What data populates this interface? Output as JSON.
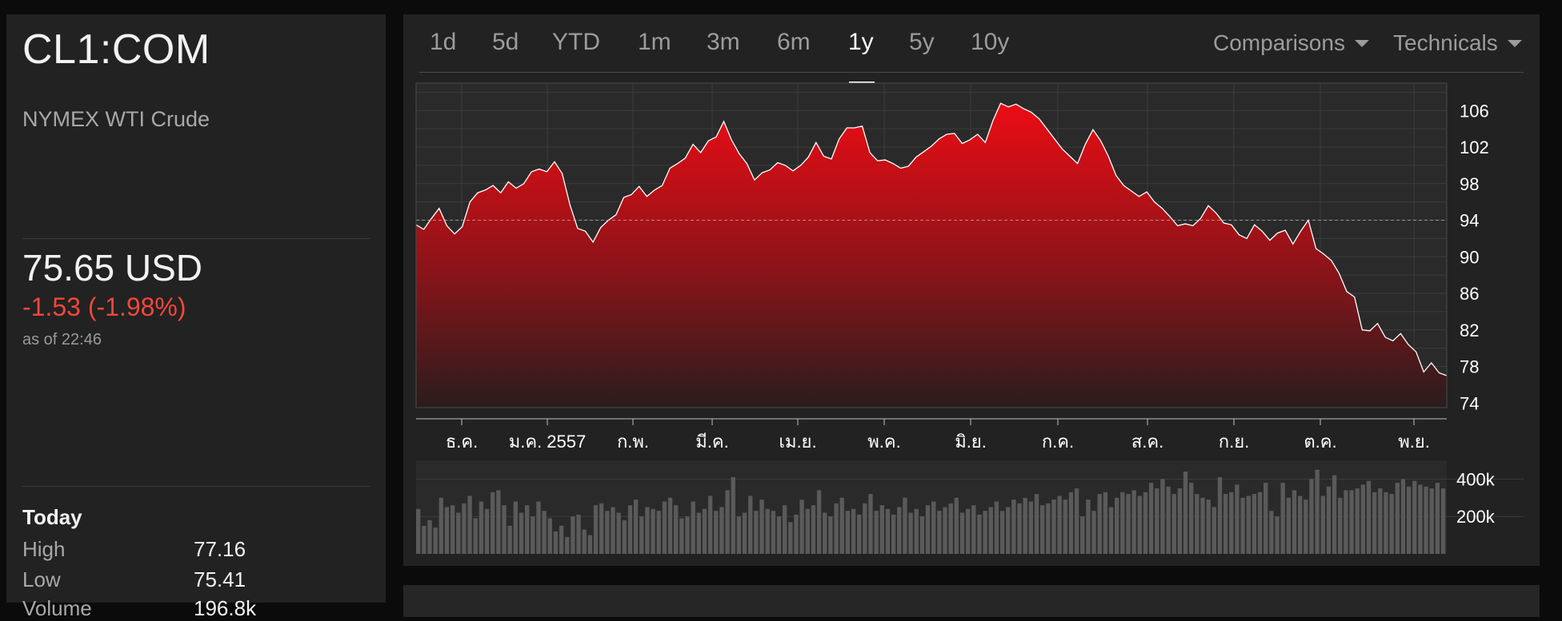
{
  "quote": {
    "ticker": "CL1:COM",
    "name": "NYMEX WTI Crude",
    "price": "75.65 USD",
    "change": "-1.53 (-1.98%)",
    "as_of": "as of 22:46"
  },
  "today": {
    "title": "Today",
    "stats": [
      {
        "label": "High",
        "value": "77.16"
      },
      {
        "label": "Low",
        "value": "75.41"
      },
      {
        "label": "Volume",
        "value": "196.8k"
      }
    ]
  },
  "range_tabs": [
    {
      "label": "1d",
      "active": false
    },
    {
      "label": "5d",
      "active": false
    },
    {
      "label": "YTD",
      "active": false
    },
    {
      "label": "1m",
      "active": false
    },
    {
      "label": "3m",
      "active": false
    },
    {
      "label": "6m",
      "active": false
    },
    {
      "label": "1y",
      "active": true
    },
    {
      "label": "5y",
      "active": false
    },
    {
      "label": "10y",
      "active": false
    }
  ],
  "menus": {
    "comparisons": "Comparisons",
    "technicals": "Technicals"
  },
  "colors": {
    "accent_red": "#e0101a",
    "down": "#f2473a"
  },
  "chart_data": [
    {
      "type": "area",
      "x_tick_labels": [
        "ธ.ค.",
        "ม.ค. 2557",
        "ก.พ.",
        "มี.ค.",
        "เม.ย.",
        "พ.ค.",
        "มิ.ย.",
        "ก.ค.",
        "ส.ค.",
        "ก.ย.",
        "ต.ค.",
        "พ.ย."
      ],
      "y_ticks": [
        106,
        102,
        98,
        94,
        90,
        86,
        82,
        78,
        74
      ],
      "ylim": [
        73.5,
        109
      ],
      "reference_line": 94,
      "grid": true,
      "series": [
        {
          "values": [
            93.5,
            93.0,
            94.2,
            95.3,
            93.4,
            92.5,
            93.3,
            96.0,
            97.0,
            97.3,
            97.8,
            97.0,
            98.2,
            97.5,
            98.0,
            99.3,
            99.6,
            99.3,
            100.4,
            99.1,
            95.7,
            93.1,
            92.8,
            91.6,
            93.2,
            94.0,
            94.6,
            96.5,
            96.8,
            97.7,
            96.6,
            97.3,
            97.8,
            99.7,
            100.2,
            100.8,
            102.3,
            101.4,
            102.7,
            103.1,
            104.8,
            102.8,
            101.3,
            100.2,
            98.4,
            99.2,
            99.5,
            100.3,
            100.0,
            99.4,
            100.0,
            100.9,
            102.5,
            101.0,
            100.7,
            102.9,
            104.1,
            104.1,
            104.3,
            101.4,
            100.5,
            100.6,
            100.2,
            99.7,
            99.9,
            100.9,
            101.5,
            102.1,
            102.9,
            103.4,
            103.5,
            102.4,
            102.8,
            103.4,
            102.5,
            104.9,
            106.8,
            106.4,
            106.7,
            106.2,
            105.8,
            105.1,
            104.0,
            102.9,
            101.8,
            101.0,
            100.2,
            102.3,
            103.9,
            102.7,
            101.0,
            98.9,
            97.8,
            97.2,
            96.6,
            97.1,
            96.0,
            95.3,
            94.4,
            93.4,
            93.6,
            93.4,
            94.2,
            95.6,
            94.8,
            93.7,
            93.5,
            92.4,
            92.0,
            93.5,
            92.8,
            91.8,
            92.6,
            92.9,
            91.4,
            92.8,
            94.0,
            90.9,
            90.3,
            89.6,
            88.2,
            86.2,
            85.6,
            82.0,
            81.9,
            82.7,
            81.2,
            80.8,
            81.6,
            80.4,
            79.6,
            77.4,
            78.4,
            77.3,
            77.0
          ],
          "fill": "#e0101a"
        }
      ]
    },
    {
      "type": "bar",
      "y_tick_labels": [
        "400k",
        "200k"
      ],
      "ylim": [
        0,
        500000
      ],
      "grid": true,
      "values": [
        240000,
        150000,
        180000,
        140000,
        300000,
        250000,
        260000,
        220000,
        270000,
        310000,
        190000,
        280000,
        240000,
        330000,
        340000,
        260000,
        150000,
        280000,
        220000,
        260000,
        200000,
        280000,
        230000,
        190000,
        120000,
        150000,
        90000,
        200000,
        210000,
        130000,
        100000,
        260000,
        270000,
        230000,
        250000,
        220000,
        180000,
        260000,
        290000,
        200000,
        250000,
        240000,
        230000,
        280000,
        300000,
        260000,
        190000,
        200000,
        280000,
        220000,
        240000,
        310000,
        230000,
        250000,
        340000,
        410000,
        200000,
        220000,
        310000,
        230000,
        290000,
        240000,
        230000,
        200000,
        260000,
        170000,
        210000,
        290000,
        240000,
        260000,
        340000,
        220000,
        200000,
        270000,
        300000,
        230000,
        240000,
        210000,
        270000,
        320000,
        230000,
        260000,
        240000,
        210000,
        250000,
        300000,
        220000,
        240000,
        200000,
        260000,
        280000,
        230000,
        250000,
        270000,
        300000,
        220000,
        240000,
        260000,
        210000,
        230000,
        250000,
        280000,
        230000,
        250000,
        290000,
        270000,
        300000,
        280000,
        320000,
        260000,
        270000,
        290000,
        310000,
        290000,
        330000,
        350000,
        200000,
        290000,
        230000,
        320000,
        330000,
        250000,
        300000,
        330000,
        320000,
        340000,
        310000,
        330000,
        380000,
        350000,
        400000,
        360000,
        320000,
        350000,
        440000,
        380000,
        320000,
        300000,
        290000,
        250000,
        410000,
        320000,
        330000,
        370000,
        300000,
        310000,
        320000,
        330000,
        380000,
        230000,
        200000,
        380000,
        300000,
        340000,
        310000,
        290000,
        400000,
        450000,
        310000,
        360000,
        420000,
        300000,
        340000,
        340000,
        350000,
        370000,
        390000,
        330000,
        350000,
        330000,
        320000,
        380000,
        400000,
        360000,
        390000,
        370000,
        360000,
        350000,
        380000,
        350000
      ]
    }
  ]
}
